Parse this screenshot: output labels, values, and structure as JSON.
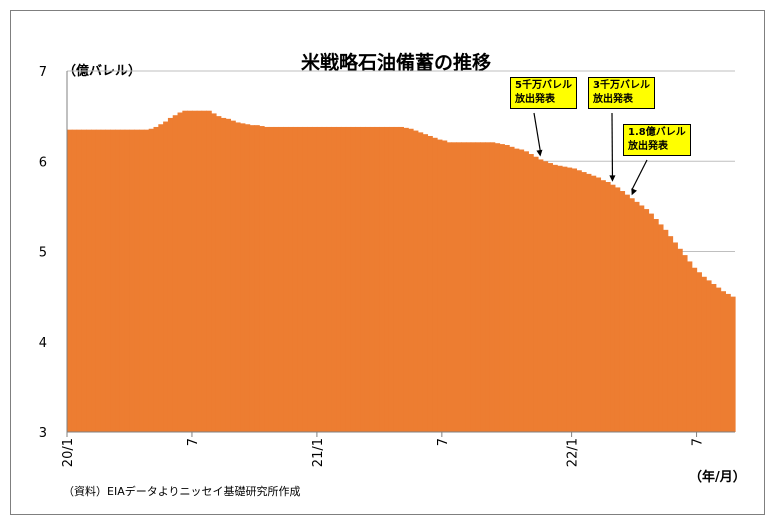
{
  "chart_data": {
    "type": "area",
    "title": "米戦略石油備蓄の推移",
    "ylabel": "（億バレル）",
    "xlabel": "（年/月）",
    "ylim": [
      3,
      7
    ],
    "yticks": [
      "3",
      "4",
      "5",
      "6",
      "7"
    ],
    "xticks": [
      {
        "label": "20/1",
        "index": 0
      },
      {
        "label": "7",
        "index": 26
      },
      {
        "label": "21/1",
        "index": 52
      },
      {
        "label": "7",
        "index": 78
      },
      {
        "label": "22/1",
        "index": 105
      },
      {
        "label": "7",
        "index": 131
      }
    ],
    "color": "#ed7d31",
    "grid": true,
    "series": [
      {
        "values": [
          6.35,
          6.35,
          6.35,
          6.35,
          6.35,
          6.35,
          6.35,
          6.35,
          6.35,
          6.35,
          6.35,
          6.35,
          6.35,
          6.35,
          6.35,
          6.35,
          6.35,
          6.36,
          6.38,
          6.41,
          6.44,
          6.48,
          6.51,
          6.54,
          6.56,
          6.56,
          6.56,
          6.56,
          6.56,
          6.56,
          6.53,
          6.5,
          6.48,
          6.47,
          6.45,
          6.43,
          6.42,
          6.41,
          6.4,
          6.4,
          6.39,
          6.38,
          6.38,
          6.38,
          6.38,
          6.38,
          6.38,
          6.38,
          6.38,
          6.38,
          6.38,
          6.38,
          6.38,
          6.38,
          6.38,
          6.38,
          6.38,
          6.38,
          6.38,
          6.38,
          6.38,
          6.38,
          6.38,
          6.38,
          6.38,
          6.38,
          6.38,
          6.38,
          6.38,
          6.38,
          6.37,
          6.36,
          6.34,
          6.32,
          6.3,
          6.28,
          6.26,
          6.24,
          6.23,
          6.21,
          6.21,
          6.21,
          6.21,
          6.21,
          6.21,
          6.21,
          6.21,
          6.21,
          6.21,
          6.2,
          6.19,
          6.18,
          6.16,
          6.14,
          6.13,
          6.11,
          6.08,
          6.05,
          6.02,
          6.0,
          5.98,
          5.96,
          5.95,
          5.94,
          5.93,
          5.92,
          5.9,
          5.88,
          5.86,
          5.84,
          5.82,
          5.79,
          5.77,
          5.74,
          5.71,
          5.67,
          5.63,
          5.59,
          5.55,
          5.51,
          5.47,
          5.42,
          5.36,
          5.3,
          5.24,
          5.17,
          5.1,
          5.03,
          4.96,
          4.89,
          4.82,
          4.77,
          4.72,
          4.68,
          4.64,
          4.6,
          4.56,
          4.53,
          4.5
        ]
      }
    ],
    "annotations": [
      {
        "line1": "5千万バレル",
        "line2": "放出発表",
        "index": 98
      },
      {
        "line1": "3千万バレル",
        "line2": "放出発表",
        "index": 113
      },
      {
        "line1": "1.8億バレル",
        "line2": "放出発表",
        "index": 117
      }
    ],
    "source": "（資料）EIAデータよりニッセイ基礎研究所作成"
  }
}
